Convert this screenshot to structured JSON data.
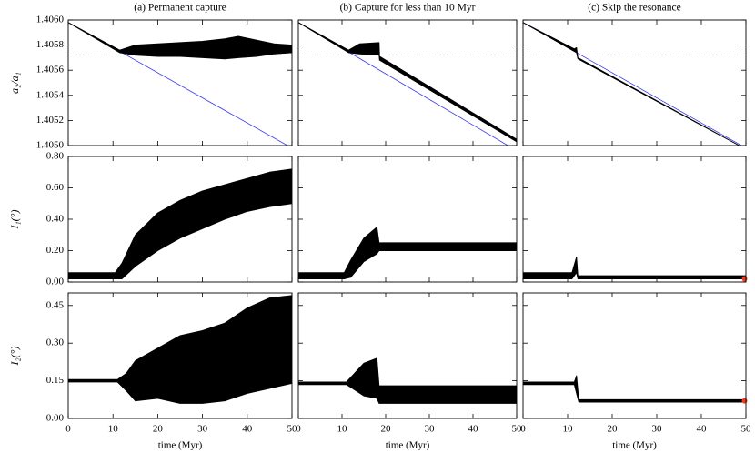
{
  "chart_data": [
    {
      "type": "line",
      "title": "(a) Permanent capture",
      "ylabel": "a₂/a₁",
      "xlim": [
        0,
        50
      ],
      "xticks": [
        0,
        10,
        20,
        30,
        40,
        50
      ],
      "xtick_labels": false,
      "ylim": [
        1.405,
        1.406
      ],
      "yticks": [
        {
          "value": 1.405,
          "label": "1.4050"
        },
        1.4052,
        1.4054,
        1.4056,
        1.4058,
        {
          "value": 1.406,
          "label": "1.4060"
        }
      ],
      "ytick_labels": true,
      "reference_y": 1.40572,
      "series": [
        {
          "color": "#3a3af0",
          "x": [
            0,
            49
          ],
          "values": [
            1.40598,
            1.405
          ]
        },
        {
          "color": "#000000",
          "x": [
            0,
            11.5,
            15,
            20,
            25,
            30,
            35,
            38,
            42,
            46,
            50
          ],
          "upper": [
            1.40598,
            1.40576,
            1.4058,
            1.40581,
            1.40582,
            1.40583,
            1.40585,
            1.40587,
            1.40584,
            1.40581,
            1.4058
          ],
          "lower": [
            1.40598,
            1.40574,
            1.40572,
            1.40571,
            1.40571,
            1.4057,
            1.40569,
            1.4057,
            1.40571,
            1.40573,
            1.40574
          ]
        }
      ]
    },
    {
      "type": "line",
      "title": "(b) Capture for less than 10 Myr",
      "xlim": [
        0,
        50
      ],
      "xticks": [
        0,
        10,
        20,
        30,
        40,
        50
      ],
      "xtick_labels": false,
      "ylim": [
        1.405,
        1.406
      ],
      "yticks": [
        1.405,
        1.4052,
        1.4054,
        1.4056,
        1.4058,
        1.406
      ],
      "ytick_labels": false,
      "reference_y": 1.40572,
      "series": [
        {
          "color": "#3a3af0",
          "x": [
            0,
            48
          ],
          "values": [
            1.40598,
            1.405
          ]
        },
        {
          "color": "#000000",
          "x": [
            0,
            11.5,
            14,
            18.5,
            18.6,
            50
          ],
          "upper": [
            1.40598,
            1.40576,
            1.40581,
            1.40582,
            1.40571,
            1.40505
          ],
          "lower": [
            1.40598,
            1.40574,
            1.40573,
            1.40572,
            1.40568,
            1.40503
          ]
        }
      ]
    },
    {
      "type": "line",
      "title": "(c) Skip the resonance",
      "xlim": [
        0,
        50
      ],
      "xticks": [
        0,
        10,
        20,
        30,
        40,
        50
      ],
      "xtick_labels": false,
      "ylim": [
        1.405,
        1.406
      ],
      "yticks": [
        1.405,
        1.4052,
        1.4054,
        1.4056,
        1.4058,
        1.406
      ],
      "ytick_labels": false,
      "reference_y": 1.40572,
      "series": [
        {
          "color": "#3a3af0",
          "x": [
            0,
            49
          ],
          "values": [
            1.40598,
            1.405
          ]
        },
        {
          "color": "#000000",
          "x": [
            0,
            11.5,
            12,
            12.3,
            48.5
          ],
          "upper": [
            1.40598,
            1.40577,
            1.40578,
            1.4057,
            1.405
          ],
          "lower": [
            1.40598,
            1.40575,
            1.40574,
            1.40569,
            1.405
          ]
        }
      ]
    },
    {
      "type": "line",
      "ylabel": "I₁(°)",
      "xlim": [
        0,
        50
      ],
      "xticks": [
        0,
        10,
        20,
        30,
        40,
        50
      ],
      "xtick_labels": false,
      "ylim": [
        0,
        0.8
      ],
      "yticks": [
        {
          "value": 0,
          "label": "0.00"
        },
        {
          "value": 0.2,
          "label": "0.20"
        },
        {
          "value": 0.4,
          "label": "0.40"
        },
        {
          "value": 0.6,
          "label": "0.60"
        },
        {
          "value": 0.8,
          "label": "0.80"
        }
      ],
      "ytick_labels": true,
      "series": [
        {
          "color": "#000000",
          "x": [
            0,
            10.5,
            12,
            15,
            20,
            25,
            30,
            35,
            40,
            45,
            50
          ],
          "upper": [
            0.06,
            0.06,
            0.12,
            0.3,
            0.44,
            0.52,
            0.58,
            0.62,
            0.66,
            0.7,
            0.72
          ],
          "lower": [
            0.02,
            0.02,
            0.02,
            0.1,
            0.2,
            0.28,
            0.34,
            0.4,
            0.45,
            0.48,
            0.5
          ]
        }
      ]
    },
    {
      "type": "line",
      "xlim": [
        0,
        50
      ],
      "xticks": [
        0,
        10,
        20,
        30,
        40,
        50
      ],
      "xtick_labels": false,
      "ylim": [
        0,
        0.8
      ],
      "yticks": [
        0,
        0.2,
        0.4,
        0.6,
        0.8
      ],
      "ytick_labels": false,
      "series": [
        {
          "color": "#000000",
          "x": [
            0,
            10.5,
            12,
            15,
            18,
            18.5,
            50
          ],
          "upper": [
            0.06,
            0.06,
            0.14,
            0.28,
            0.35,
            0.25,
            0.25
          ],
          "lower": [
            0.02,
            0.02,
            0.03,
            0.13,
            0.18,
            0.2,
            0.2
          ]
        }
      ]
    },
    {
      "type": "line",
      "xlim": [
        0,
        50
      ],
      "xticks": [
        0,
        10,
        20,
        30,
        40,
        50
      ],
      "xtick_labels": false,
      "ylim": [
        0,
        0.8
      ],
      "yticks": [
        0,
        0.2,
        0.4,
        0.6,
        0.8
      ],
      "ytick_labels": false,
      "series": [
        {
          "color": "#000000",
          "x": [
            0,
            11,
            12,
            12.3,
            50
          ],
          "upper": [
            0.06,
            0.06,
            0.16,
            0.04,
            0.04
          ],
          "lower": [
            0.02,
            0.02,
            0.06,
            0.02,
            0.02
          ]
        },
        {
          "color": "#f03c1e",
          "x": [
            49.7
          ],
          "points": [
            0.02
          ]
        }
      ]
    },
    {
      "type": "line",
      "ylabel": "I₂(°)",
      "xlabel": "time (Myr)",
      "xlim": [
        0,
        50
      ],
      "xticks": [
        0,
        10,
        20,
        30,
        40,
        50
      ],
      "xtick_labels": true,
      "ylim": [
        0,
        0.5
      ],
      "yticks": [
        {
          "value": 0,
          "label": "0.00"
        },
        0.15,
        {
          "value": 0.3,
          "label": "0.30"
        },
        0.45
      ],
      "ytick_labels": true,
      "series": [
        {
          "color": "#000000",
          "x": [
            0,
            11,
            13,
            15,
            20,
            25,
            30,
            35,
            40,
            45,
            50
          ],
          "upper": [
            0.155,
            0.155,
            0.18,
            0.23,
            0.28,
            0.33,
            0.35,
            0.38,
            0.44,
            0.48,
            0.49
          ],
          "lower": [
            0.145,
            0.145,
            0.11,
            0.07,
            0.08,
            0.06,
            0.06,
            0.07,
            0.1,
            0.12,
            0.14
          ]
        }
      ]
    },
    {
      "type": "line",
      "xlabel": "time (Myr)",
      "xlim": [
        0,
        50
      ],
      "xticks": [
        0,
        10,
        20,
        30,
        40,
        50
      ],
      "xtick_labels": true,
      "ylim": [
        0,
        0.5
      ],
      "yticks": [
        0,
        0.15,
        0.3,
        0.45
      ],
      "ytick_labels": false,
      "series": [
        {
          "color": "#000000",
          "x": [
            0,
            11,
            15,
            18,
            18.5,
            50
          ],
          "upper": [
            0.145,
            0.145,
            0.22,
            0.24,
            0.13,
            0.13
          ],
          "lower": [
            0.135,
            0.135,
            0.09,
            0.08,
            0.06,
            0.06
          ]
        }
      ]
    },
    {
      "type": "line",
      "xlabel": "time (Myr)",
      "xlim": [
        0,
        50
      ],
      "xticks": [
        0,
        10,
        20,
        30,
        40,
        50
      ],
      "xtick_labels": true,
      "ylim": [
        0,
        0.5
      ],
      "yticks": [
        0,
        0.15,
        0.3,
        0.45
      ],
      "ytick_labels": false,
      "series": [
        {
          "color": "#000000",
          "x": [
            0,
            11.5,
            12,
            12.5,
            50
          ],
          "upper": [
            0.145,
            0.145,
            0.17,
            0.075,
            0.075
          ],
          "lower": [
            0.135,
            0.135,
            0.1,
            0.065,
            0.065
          ]
        },
        {
          "color": "#f03c1e",
          "x": [
            49.7
          ],
          "points": [
            0.07
          ]
        }
      ]
    }
  ]
}
